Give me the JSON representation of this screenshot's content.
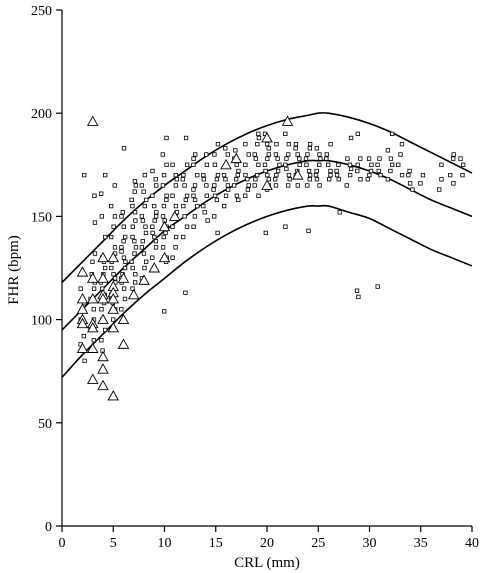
{
  "chart_data": {
    "type": "scatter",
    "xlabel": "CRL (mm)",
    "ylabel": "FHR (bpm)",
    "xlim": [
      0,
      40
    ],
    "ylim": [
      0,
      250
    ],
    "xticks": [
      0,
      5,
      10,
      15,
      20,
      25,
      30,
      35,
      40
    ],
    "yticks": [
      0,
      50,
      100,
      150,
      200,
      250
    ],
    "grid": false,
    "curves": [
      {
        "x": [
          0,
          2,
          4,
          6,
          8,
          10,
          12,
          14,
          16,
          18,
          20,
          22,
          24,
          25,
          26,
          28,
          30,
          32,
          34,
          36,
          38,
          40
        ],
        "y": [
          118,
          128,
          138,
          148,
          157,
          165,
          172,
          179,
          185,
          190,
          194,
          197,
          199,
          200,
          200,
          198,
          195,
          191,
          186,
          181,
          176,
          171
        ]
      },
      {
        "x": [
          0,
          2,
          4,
          6,
          8,
          10,
          12,
          14,
          16,
          18,
          20,
          22,
          24,
          25,
          26,
          28,
          30,
          32,
          34,
          36,
          38,
          40
        ],
        "y": [
          95,
          105,
          115,
          125,
          134,
          143,
          150,
          157,
          163,
          168,
          172,
          175,
          177,
          177,
          177,
          175,
          172,
          168,
          163,
          158,
          154,
          150
        ]
      },
      {
        "x": [
          0,
          2,
          4,
          6,
          8,
          10,
          12,
          14,
          16,
          18,
          20,
          22,
          24,
          25,
          26,
          28,
          30,
          32,
          34,
          36,
          38,
          40
        ],
        "y": [
          72,
          83,
          93,
          103,
          112,
          120,
          128,
          135,
          141,
          146,
          150,
          153,
          155,
          155,
          155,
          152,
          149,
          144,
          139,
          134,
          130,
          126
        ]
      }
    ],
    "series_normal": [
      [
        2,
        85
      ],
      [
        2,
        92
      ],
      [
        2,
        100
      ],
      [
        2,
        108
      ],
      [
        2,
        115
      ],
      [
        2,
        170
      ],
      [
        2,
        80
      ],
      [
        2,
        88
      ],
      [
        3,
        95
      ],
      [
        3,
        100
      ],
      [
        3,
        105
      ],
      [
        3,
        110
      ],
      [
        3,
        115
      ],
      [
        3,
        118
      ],
      [
        3,
        122
      ],
      [
        3,
        128
      ],
      [
        3,
        132
      ],
      [
        3,
        147
      ],
      [
        3,
        160
      ],
      [
        3,
        90
      ],
      [
        3,
        85
      ],
      [
        4,
        95
      ],
      [
        4,
        100
      ],
      [
        4,
        105
      ],
      [
        4,
        108
      ],
      [
        4,
        112
      ],
      [
        4,
        115
      ],
      [
        4,
        118
      ],
      [
        4,
        122
      ],
      [
        4,
        125
      ],
      [
        4,
        128
      ],
      [
        4,
        130
      ],
      [
        4,
        140
      ],
      [
        4,
        150
      ],
      [
        4,
        161
      ],
      [
        4,
        170
      ],
      [
        4,
        90
      ],
      [
        4,
        85
      ],
      [
        5,
        100
      ],
      [
        5,
        105
      ],
      [
        5,
        108
      ],
      [
        5,
        110
      ],
      [
        5,
        112
      ],
      [
        5,
        115
      ],
      [
        5,
        118
      ],
      [
        5,
        120
      ],
      [
        5,
        122
      ],
      [
        5,
        125
      ],
      [
        5,
        128
      ],
      [
        5,
        130
      ],
      [
        5,
        132
      ],
      [
        5,
        135
      ],
      [
        5,
        140
      ],
      [
        5,
        145
      ],
      [
        5,
        150
      ],
      [
        5,
        155
      ],
      [
        5,
        165
      ],
      [
        6,
        110
      ],
      [
        6,
        115
      ],
      [
        6,
        118
      ],
      [
        6,
        120
      ],
      [
        6,
        122
      ],
      [
        6,
        125
      ],
      [
        6,
        128
      ],
      [
        6,
        130
      ],
      [
        6,
        133
      ],
      [
        6,
        135
      ],
      [
        6,
        138
      ],
      [
        6,
        140
      ],
      [
        6,
        145
      ],
      [
        6,
        150
      ],
      [
        6,
        152
      ],
      [
        6,
        183
      ],
      [
        6,
        105
      ],
      [
        7,
        115
      ],
      [
        7,
        118
      ],
      [
        7,
        122
      ],
      [
        7,
        125
      ],
      [
        7,
        128
      ],
      [
        7,
        132
      ],
      [
        7,
        135
      ],
      [
        7,
        138
      ],
      [
        7,
        140
      ],
      [
        7,
        145
      ],
      [
        7,
        148
      ],
      [
        7,
        152
      ],
      [
        7,
        155
      ],
      [
        7,
        158
      ],
      [
        7,
        162
      ],
      [
        7,
        165
      ],
      [
        7,
        167
      ],
      [
        8,
        120
      ],
      [
        8,
        125
      ],
      [
        8,
        128
      ],
      [
        8,
        132
      ],
      [
        8,
        135
      ],
      [
        8,
        138
      ],
      [
        8,
        142
      ],
      [
        8,
        145
      ],
      [
        8,
        148
      ],
      [
        8,
        150
      ],
      [
        8,
        155
      ],
      [
        8,
        158
      ],
      [
        8,
        162
      ],
      [
        8,
        165
      ],
      [
        8,
        170
      ],
      [
        9,
        125
      ],
      [
        9,
        130
      ],
      [
        9,
        135
      ],
      [
        9,
        138
      ],
      [
        9,
        140
      ],
      [
        9,
        145
      ],
      [
        9,
        148
      ],
      [
        9,
        150
      ],
      [
        9,
        152
      ],
      [
        9,
        155
      ],
      [
        9,
        160
      ],
      [
        9,
        165
      ],
      [
        9,
        168
      ],
      [
        9,
        172
      ],
      [
        9,
        142
      ],
      [
        10,
        104
      ],
      [
        10,
        128
      ],
      [
        10,
        130
      ],
      [
        10,
        135
      ],
      [
        10,
        140
      ],
      [
        10,
        142
      ],
      [
        10,
        145
      ],
      [
        10,
        148
      ],
      [
        10,
        150
      ],
      [
        10,
        155
      ],
      [
        10,
        158
      ],
      [
        10,
        160
      ],
      [
        10,
        165
      ],
      [
        10,
        170
      ],
      [
        10,
        175
      ],
      [
        10,
        180
      ],
      [
        10,
        188
      ],
      [
        11,
        130
      ],
      [
        11,
        135
      ],
      [
        11,
        140
      ],
      [
        11,
        145
      ],
      [
        11,
        150
      ],
      [
        11,
        152
      ],
      [
        11,
        155
      ],
      [
        11,
        160
      ],
      [
        11,
        165
      ],
      [
        11,
        168
      ],
      [
        11,
        170
      ],
      [
        11,
        175
      ],
      [
        12,
        113
      ],
      [
        12,
        140
      ],
      [
        12,
        145
      ],
      [
        12,
        150
      ],
      [
        12,
        155
      ],
      [
        12,
        158
      ],
      [
        12,
        160
      ],
      [
        12,
        165
      ],
      [
        12,
        168
      ],
      [
        12,
        170
      ],
      [
        12,
        175
      ],
      [
        12,
        188
      ],
      [
        13,
        145
      ],
      [
        13,
        150
      ],
      [
        13,
        155
      ],
      [
        13,
        158
      ],
      [
        13,
        160
      ],
      [
        13,
        163
      ],
      [
        13,
        165
      ],
      [
        13,
        170
      ],
      [
        13,
        175
      ],
      [
        13,
        178
      ],
      [
        13,
        180
      ],
      [
        14,
        148
      ],
      [
        14,
        152
      ],
      [
        14,
        155
      ],
      [
        14,
        160
      ],
      [
        14,
        165
      ],
      [
        14,
        168
      ],
      [
        14,
        170
      ],
      [
        14,
        175
      ],
      [
        14,
        180
      ],
      [
        15,
        142
      ],
      [
        15,
        150
      ],
      [
        15,
        158
      ],
      [
        15,
        160
      ],
      [
        15,
        163
      ],
      [
        15,
        165
      ],
      [
        15,
        168
      ],
      [
        15,
        170
      ],
      [
        15,
        175
      ],
      [
        15,
        180
      ],
      [
        15,
        185
      ],
      [
        16,
        155
      ],
      [
        16,
        160
      ],
      [
        16,
        163
      ],
      [
        16,
        165
      ],
      [
        16,
        168
      ],
      [
        16,
        170
      ],
      [
        16,
        175
      ],
      [
        16,
        180
      ],
      [
        16,
        183
      ],
      [
        17,
        158
      ],
      [
        17,
        160
      ],
      [
        17,
        165
      ],
      [
        17,
        168
      ],
      [
        17,
        170
      ],
      [
        17,
        172
      ],
      [
        17,
        175
      ],
      [
        17,
        178
      ],
      [
        17,
        182
      ],
      [
        18,
        160
      ],
      [
        18,
        163
      ],
      [
        18,
        165
      ],
      [
        18,
        168
      ],
      [
        18,
        170
      ],
      [
        18,
        175
      ],
      [
        18,
        180
      ],
      [
        18,
        185
      ],
      [
        19,
        160
      ],
      [
        19,
        165
      ],
      [
        19,
        168
      ],
      [
        19,
        170
      ],
      [
        19,
        175
      ],
      [
        19,
        178
      ],
      [
        19,
        180
      ],
      [
        19,
        185
      ],
      [
        19,
        188
      ],
      [
        19,
        190
      ],
      [
        20,
        142
      ],
      [
        20,
        163
      ],
      [
        20,
        165
      ],
      [
        20,
        168
      ],
      [
        20,
        170
      ],
      [
        20,
        172
      ],
      [
        20,
        175
      ],
      [
        20,
        178
      ],
      [
        20,
        180
      ],
      [
        20,
        183
      ],
      [
        20,
        185
      ],
      [
        20,
        190
      ],
      [
        21,
        165
      ],
      [
        21,
        168
      ],
      [
        21,
        170
      ],
      [
        21,
        172
      ],
      [
        21,
        175
      ],
      [
        21,
        178
      ],
      [
        21,
        180
      ],
      [
        21,
        185
      ],
      [
        22,
        145
      ],
      [
        22,
        165
      ],
      [
        22,
        168
      ],
      [
        22,
        170
      ],
      [
        22,
        173
      ],
      [
        22,
        175
      ],
      [
        22,
        178
      ],
      [
        22,
        180
      ],
      [
        22,
        185
      ],
      [
        22,
        190
      ],
      [
        23,
        165
      ],
      [
        23,
        170
      ],
      [
        23,
        172
      ],
      [
        23,
        175
      ],
      [
        23,
        178
      ],
      [
        23,
        180
      ],
      [
        23,
        183
      ],
      [
        23,
        185
      ],
      [
        24,
        143
      ],
      [
        24,
        165
      ],
      [
        24,
        168
      ],
      [
        24,
        170
      ],
      [
        24,
        172
      ],
      [
        24,
        175
      ],
      [
        24,
        178
      ],
      [
        24,
        180
      ],
      [
        24,
        183
      ],
      [
        24,
        185
      ],
      [
        25,
        165
      ],
      [
        25,
        168
      ],
      [
        25,
        170
      ],
      [
        25,
        172
      ],
      [
        25,
        175
      ],
      [
        25,
        178
      ],
      [
        25,
        180
      ],
      [
        25,
        183
      ],
      [
        26,
        168
      ],
      [
        26,
        170
      ],
      [
        26,
        172
      ],
      [
        26,
        175
      ],
      [
        26,
        178
      ],
      [
        26,
        180
      ],
      [
        26,
        185
      ],
      [
        27,
        152
      ],
      [
        27,
        168
      ],
      [
        27,
        170
      ],
      [
        27,
        172
      ],
      [
        27,
        175
      ],
      [
        28,
        165
      ],
      [
        28,
        170
      ],
      [
        28,
        173
      ],
      [
        28,
        175
      ],
      [
        28,
        178
      ],
      [
        28,
        188
      ],
      [
        29,
        111
      ],
      [
        29,
        114
      ],
      [
        29,
        168
      ],
      [
        29,
        172
      ],
      [
        29,
        175
      ],
      [
        29,
        178
      ],
      [
        29,
        190
      ],
      [
        30,
        168
      ],
      [
        30,
        170
      ],
      [
        30,
        172
      ],
      [
        30,
        175
      ],
      [
        30,
        178
      ],
      [
        31,
        116
      ],
      [
        31,
        170
      ],
      [
        31,
        172
      ],
      [
        31,
        175
      ],
      [
        31,
        178
      ],
      [
        32,
        168
      ],
      [
        32,
        172
      ],
      [
        32,
        175
      ],
      [
        32,
        178
      ],
      [
        32,
        182
      ],
      [
        32,
        190
      ],
      [
        33,
        170
      ],
      [
        33,
        175
      ],
      [
        33,
        180
      ],
      [
        33,
        185
      ],
      [
        34,
        163
      ],
      [
        34,
        166
      ],
      [
        34,
        170
      ],
      [
        34,
        172
      ],
      [
        35,
        166
      ],
      [
        35,
        170
      ],
      [
        37,
        163
      ],
      [
        37,
        168
      ],
      [
        37,
        175
      ],
      [
        38,
        166
      ],
      [
        38,
        170
      ],
      [
        38,
        178
      ],
      [
        38,
        180
      ],
      [
        39,
        170
      ],
      [
        39,
        175
      ],
      [
        39,
        178
      ]
    ],
    "series_triangles": [
      [
        2,
        123
      ],
      [
        2,
        110
      ],
      [
        2,
        105
      ],
      [
        2,
        100
      ],
      [
        2,
        98
      ],
      [
        2,
        86
      ],
      [
        3,
        196
      ],
      [
        3,
        120
      ],
      [
        3,
        110
      ],
      [
        3,
        98
      ],
      [
        3,
        96
      ],
      [
        3,
        86
      ],
      [
        3,
        71
      ],
      [
        4,
        130
      ],
      [
        4,
        120
      ],
      [
        4,
        112
      ],
      [
        4,
        110
      ],
      [
        4,
        100
      ],
      [
        4,
        82
      ],
      [
        4,
        76
      ],
      [
        4,
        68
      ],
      [
        5,
        130
      ],
      [
        5,
        116
      ],
      [
        5,
        113
      ],
      [
        5,
        110
      ],
      [
        5,
        105
      ],
      [
        5,
        96
      ],
      [
        5,
        63
      ],
      [
        6,
        120
      ],
      [
        6,
        100
      ],
      [
        6,
        88
      ],
      [
        7,
        112
      ],
      [
        8,
        119
      ],
      [
        9,
        125
      ],
      [
        10,
        130
      ],
      [
        10,
        145
      ],
      [
        11,
        150
      ],
      [
        16,
        175
      ],
      [
        17,
        178
      ],
      [
        20,
        188
      ],
      [
        20,
        165
      ],
      [
        22,
        196
      ],
      [
        23,
        170
      ]
    ]
  }
}
